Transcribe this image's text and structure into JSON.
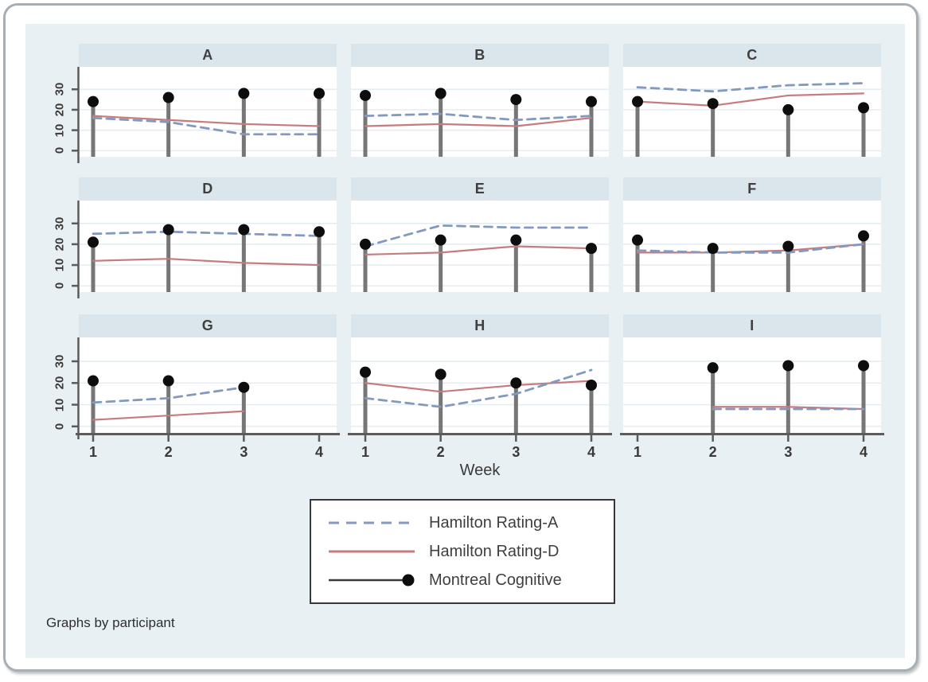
{
  "colors": {
    "canvas_bg": "#e9f0f3",
    "panel_bg": "#ffffff",
    "header_bg": "#dbe5ec",
    "grid": "#e2ecf1",
    "axis": "#5b5b5b",
    "stem": "#767676",
    "dot": "#0d0d0d",
    "text": "#3f3f3f",
    "frame_border": "#a7afb4",
    "legend_border": "#383838"
  },
  "chart_data": {
    "type": "line",
    "title": "",
    "xlabel": "Week",
    "note": "Graphs by participant",
    "facet_by": "participant",
    "layout": "3x3",
    "grid": true,
    "legend_position": "bottom-center",
    "x": [
      1,
      2,
      3,
      4
    ],
    "xticks": [
      1,
      2,
      3,
      4
    ],
    "yticks": [
      0,
      10,
      20,
      30
    ],
    "ylim": [
      -3,
      41
    ],
    "series_meta": [
      {
        "key": "hamilton_a",
        "label": "Hamilton Rating-A",
        "style": "dashed",
        "color": "#8399bf"
      },
      {
        "key": "hamilton_d",
        "label": "Hamilton Rating-D",
        "style": "solid",
        "color": "#c67c7e"
      },
      {
        "key": "moca",
        "label": "Montreal Cognitive",
        "style": "spike-dot",
        "color": "#0d0d0d"
      }
    ],
    "panels": [
      {
        "label": "A",
        "hamilton_a": [
          16,
          14,
          8,
          8
        ],
        "hamilton_d": [
          17,
          15,
          13,
          12
        ],
        "moca": [
          24,
          26,
          28,
          28
        ]
      },
      {
        "label": "B",
        "hamilton_a": [
          17,
          18,
          15,
          17
        ],
        "hamilton_d": [
          12,
          13,
          12,
          16
        ],
        "moca": [
          27,
          28,
          25,
          24
        ]
      },
      {
        "label": "C",
        "hamilton_a": [
          31,
          29,
          32,
          33
        ],
        "hamilton_d": [
          24,
          22,
          27,
          28
        ],
        "moca": [
          24,
          23,
          20,
          21
        ]
      },
      {
        "label": "D",
        "hamilton_a": [
          25,
          26,
          25,
          24
        ],
        "hamilton_d": [
          12,
          13,
          11,
          10
        ],
        "moca": [
          21,
          27,
          27,
          26
        ]
      },
      {
        "label": "E",
        "hamilton_a": [
          19,
          29,
          28,
          28
        ],
        "hamilton_d": [
          15,
          16,
          19,
          18
        ],
        "moca": [
          20,
          22,
          22,
          18
        ]
      },
      {
        "label": "F",
        "hamilton_a": [
          17,
          16,
          16,
          20
        ],
        "hamilton_d": [
          16,
          16,
          17,
          20
        ],
        "moca": [
          22,
          18,
          19,
          24
        ]
      },
      {
        "label": "G",
        "hamilton_a": [
          11,
          13,
          18,
          null
        ],
        "hamilton_d": [
          3,
          5,
          7,
          null
        ],
        "moca": [
          21,
          21,
          18,
          null
        ]
      },
      {
        "label": "H",
        "hamilton_a": [
          13,
          9,
          15,
          26
        ],
        "hamilton_d": [
          20,
          16,
          19,
          21
        ],
        "moca": [
          25,
          24,
          20,
          19
        ]
      },
      {
        "label": "I",
        "hamilton_a": [
          null,
          8,
          8,
          8
        ],
        "hamilton_d": [
          null,
          9,
          9,
          8
        ],
        "moca": [
          null,
          27,
          28,
          28
        ]
      }
    ]
  }
}
